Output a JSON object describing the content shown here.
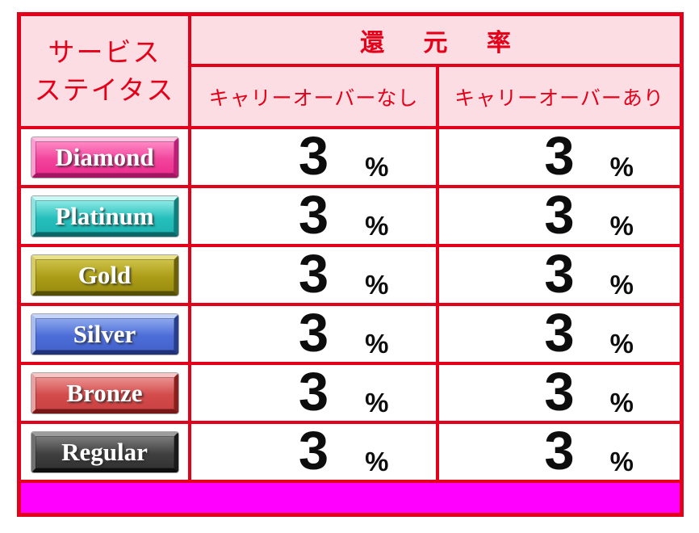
{
  "colors": {
    "border_red": "#e3001b",
    "header_text_red": "#e50019",
    "header_bg_pink": "#fbdde3",
    "cell_bg": "#ffffff",
    "value_text": "#0d0d0d",
    "footer_magenta": "#ff00ff"
  },
  "table": {
    "corner_header": {
      "line1": "サービス",
      "line2": "ステイタス"
    },
    "group_header": "還 元 率",
    "sub_headers": [
      "キャリーオーバーなし",
      "キャリーオーバーあり"
    ],
    "unit": "%",
    "rows": [
      {
        "tier": "Diamond",
        "badge_color": "#f2459c",
        "no_carryover": "3",
        "with_carryover": "3"
      },
      {
        "tier": "Platinum",
        "badge_color": "#27bfbc",
        "no_carryover": "3",
        "with_carryover": "3"
      },
      {
        "tier": "Gold",
        "badge_color": "#ab9d17",
        "no_carryover": "3",
        "with_carryover": "3"
      },
      {
        "tier": "Silver",
        "badge_color": "#4c6dd7",
        "no_carryover": "3",
        "with_carryover": "3"
      },
      {
        "tier": "Bronze",
        "badge_color": "#d34b4b",
        "no_carryover": "3",
        "with_carryover": "3"
      },
      {
        "tier": "Regular",
        "badge_color": "#404040",
        "no_carryover": "3",
        "with_carryover": "3"
      }
    ]
  },
  "chart_data": {
    "type": "table",
    "title": "還元率",
    "columns": [
      "サービスステイタス",
      "キャリーオーバーなし",
      "キャリーオーバーあり"
    ],
    "rows": [
      [
        "Diamond",
        "3%",
        "3%"
      ],
      [
        "Platinum",
        "3%",
        "3%"
      ],
      [
        "Gold",
        "3%",
        "3%"
      ],
      [
        "Silver",
        "3%",
        "3%"
      ],
      [
        "Bronze",
        "3%",
        "3%"
      ],
      [
        "Regular",
        "3%",
        "3%"
      ]
    ]
  }
}
